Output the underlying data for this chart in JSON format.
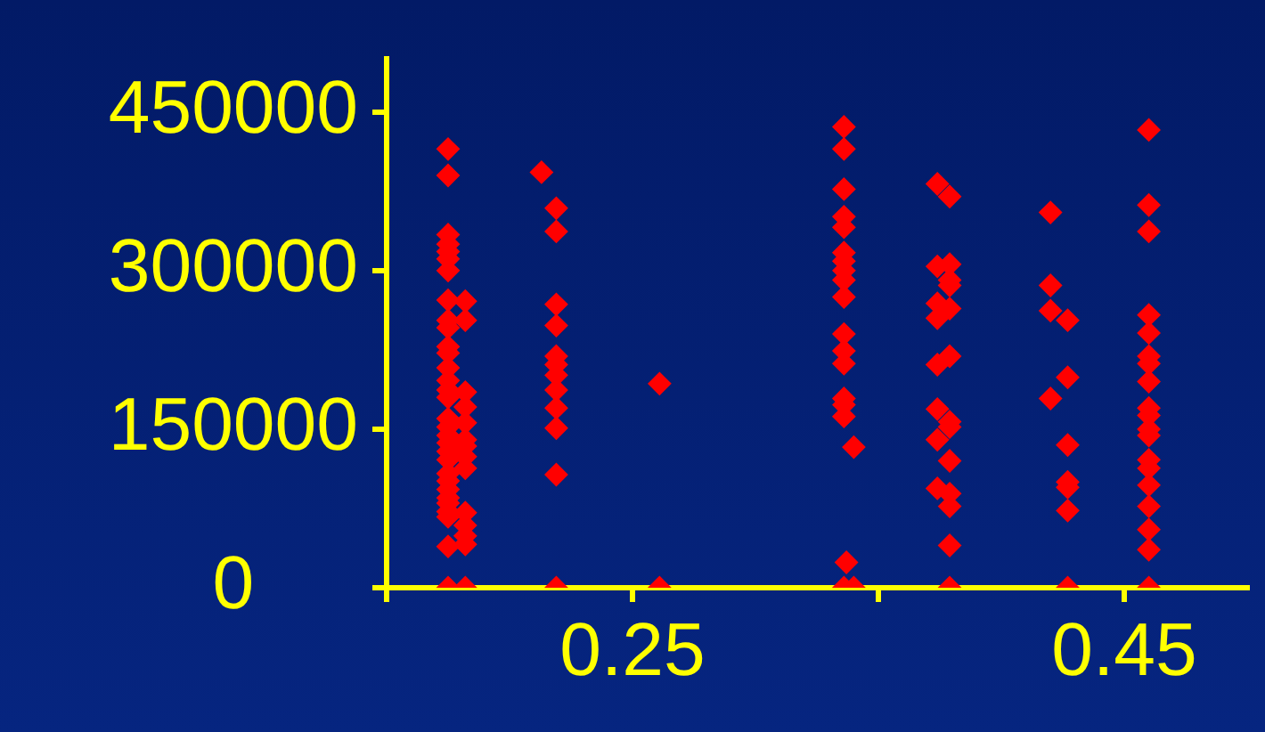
{
  "chart_data": {
    "type": "scatter",
    "marker": "diamond",
    "grid": false,
    "legend": false,
    "xlim": [
      0.15,
      0.5
    ],
    "xticks": [
      {
        "value": 0.15,
        "label": null
      },
      0.25,
      {
        "value": 0.35,
        "label": null
      },
      0.45
    ],
    "ylim": [
      0,
      500000
    ],
    "yticks": [
      0,
      150000,
      300000,
      450000
    ],
    "series": [
      {
        "color": "#ff0000",
        "x": [
          0.175,
          0.175,
          0.175,
          0.175,
          0.175,
          0.175,
          0.175,
          0.175,
          0.175,
          0.175,
          0.175,
          0.175,
          0.175,
          0.175,
          0.175,
          0.175,
          0.175,
          0.175,
          0.175,
          0.175,
          0.175,
          0.175,
          0.175,
          0.175,
          0.175,
          0.175,
          0.175,
          0.175,
          0.175,
          0.175,
          0.175,
          0.182,
          0.182,
          0.182,
          0.182,
          0.182,
          0.182,
          0.182,
          0.182,
          0.182,
          0.182,
          0.182,
          0.182,
          0.182,
          0.182,
          0.213,
          0.219,
          0.219,
          0.219,
          0.219,
          0.219,
          0.219,
          0.219,
          0.219,
          0.219,
          0.219,
          0.219,
          0.219,
          0.261,
          0.261,
          0.336,
          0.336,
          0.336,
          0.336,
          0.336,
          0.336,
          0.336,
          0.336,
          0.336,
          0.336,
          0.336,
          0.336,
          0.336,
          0.336,
          0.336,
          0.336,
          0.337,
          0.336,
          0.34,
          0.34,
          0.374,
          0.374,
          0.374,
          0.374,
          0.374,
          0.374,
          0.374,
          0.374,
          0.379,
          0.379,
          0.379,
          0.379,
          0.379,
          0.379,
          0.379,
          0.379,
          0.379,
          0.379,
          0.379,
          0.379,
          0.379,
          0.42,
          0.42,
          0.42,
          0.42,
          0.427,
          0.427,
          0.427,
          0.427,
          0.427,
          0.427,
          0.427,
          0.46,
          0.46,
          0.46,
          0.46,
          0.46,
          0.46,
          0.46,
          0.46,
          0.46,
          0.46,
          0.46,
          0.46,
          0.46,
          0.46,
          0.46,
          0.46,
          0.46,
          0.46,
          0.46
        ],
        "values": [
          415000,
          390000,
          334000,
          325000,
          318000,
          311000,
          300000,
          272000,
          253000,
          246000,
          228000,
          222000,
          208000,
          196000,
          187000,
          180000,
          160000,
          152000,
          144000,
          137000,
          129000,
          121000,
          108000,
          101000,
          93000,
          85000,
          80000,
          72000,
          67000,
          39000,
          0,
          271000,
          253000,
          185000,
          171000,
          156000,
          140000,
          134000,
          124000,
          113000,
          71000,
          59000,
          49000,
          41000,
          0,
          393000,
          359000,
          337000,
          268000,
          248000,
          219000,
          211000,
          201000,
          187000,
          170000,
          151000,
          107000,
          0,
          193000,
          0,
          436000,
          415000,
          377000,
          351000,
          341000,
          317000,
          309000,
          300000,
          291000,
          275000,
          240000,
          224000,
          212000,
          179000,
          173000,
          162000,
          24000,
          0,
          133000,
          0,
          382000,
          304000,
          269000,
          255000,
          211000,
          169000,
          140000,
          94000,
          370000,
          306000,
          291000,
          286000,
          264000,
          219000,
          157000,
          152000,
          120000,
          89000,
          77000,
          40000,
          0,
          355000,
          286000,
          262000,
          179000,
          253000,
          199000,
          135000,
          100000,
          95000,
          73000,
          0,
          433000,
          362000,
          337000,
          258000,
          241000,
          219000,
          212000,
          195000,
          170000,
          163000,
          150000,
          144000,
          121000,
          113000,
          97000,
          77000,
          55000,
          36000,
          0
        ]
      }
    ]
  }
}
